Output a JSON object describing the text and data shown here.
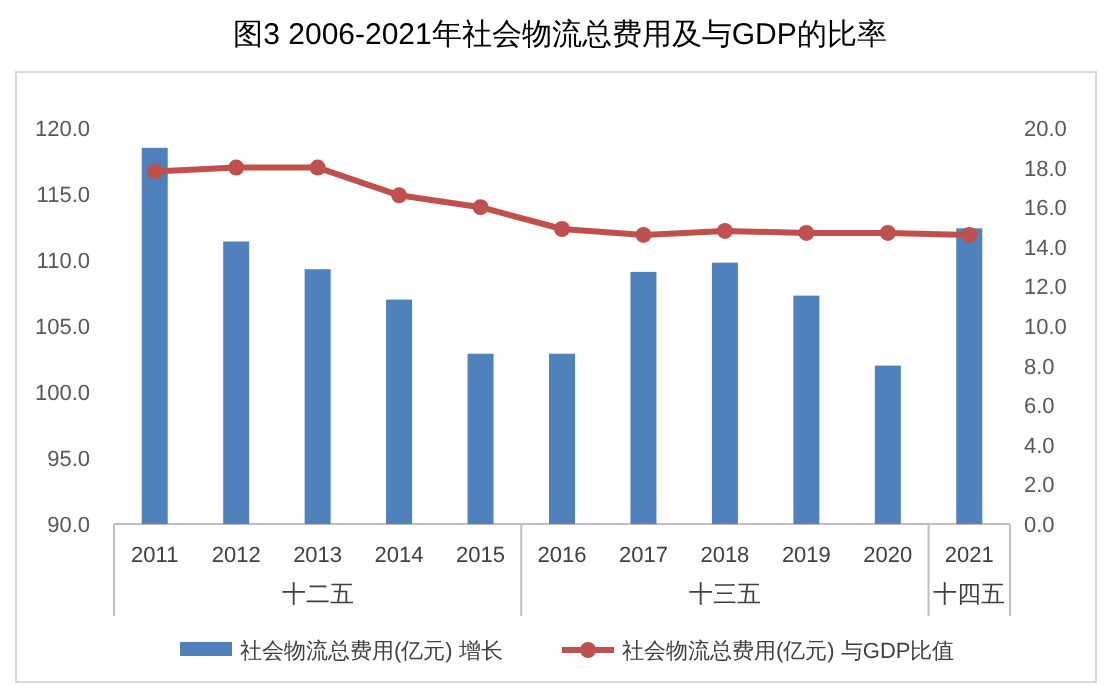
{
  "chart_data": {
    "type": "bar",
    "title": "图3 2006-2021年社会物流总费用及与GDP的比率",
    "categories": [
      "2011",
      "2012",
      "2013",
      "2014",
      "2015",
      "2016",
      "2017",
      "2018",
      "2019",
      "2020",
      "2021"
    ],
    "series": [
      {
        "name": "社会物流总费用(亿元) 增长",
        "color": "#4f81bd",
        "values": [
          118.5,
          111.4,
          109.3,
          107.0,
          102.9,
          102.9,
          109.1,
          109.8,
          107.3,
          102.0,
          112.4
        ]
      },
      {
        "name": "社会物流总费用(亿元) 与GDP比值",
        "type": "line",
        "axis": "y2",
        "color": "#c0504d",
        "marker": "circle",
        "values": [
          17.8,
          18.0,
          18.0,
          16.6,
          16.0,
          14.9,
          14.6,
          14.8,
          14.7,
          14.7,
          14.6
        ]
      }
    ],
    "ylim": [
      90,
      120
    ],
    "yticks": [
      {
        "value": 90,
        "label": "90.0"
      },
      {
        "value": 95,
        "label": "95.0"
      },
      {
        "value": 100,
        "label": "100.0"
      },
      {
        "value": 105,
        "label": "105.0"
      },
      {
        "value": 110,
        "label": "110.0"
      },
      {
        "value": 115,
        "label": "115.0"
      },
      {
        "value": 120,
        "label": "120.0"
      }
    ],
    "y2lim": [
      0,
      20
    ],
    "y2ticks": [
      {
        "value": 0,
        "label": "0.0"
      },
      {
        "value": 2,
        "label": "2.0"
      },
      {
        "value": 4,
        "label": "4.0"
      },
      {
        "value": 6,
        "label": "6.0"
      },
      {
        "value": 8,
        "label": "8.0"
      },
      {
        "value": 10,
        "label": "10.0"
      },
      {
        "value": 12,
        "label": "12.0"
      },
      {
        "value": 14,
        "label": "14.0"
      },
      {
        "value": 16,
        "label": "16.0"
      },
      {
        "value": 18,
        "label": "18.0"
      },
      {
        "value": 20,
        "label": "20.0"
      }
    ],
    "annotations": [
      "十二五",
      "十三五",
      "十四五"
    ],
    "grid": false,
    "legend": "bottom"
  }
}
